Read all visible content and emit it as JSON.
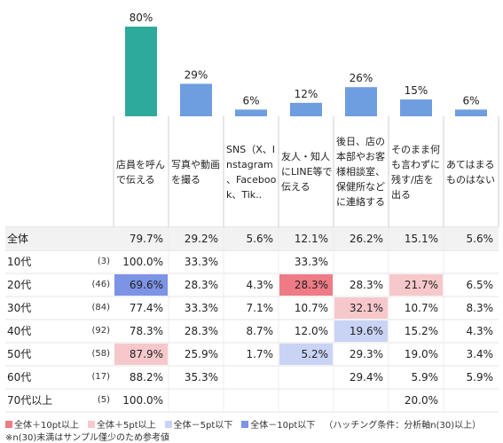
{
  "chart_data": {
    "type": "bar",
    "categories": [
      "店員を呼んで伝える",
      "写真や動画を撮る",
      "SNS（X、Instagram、Facebook、Tik..",
      "友人・知人にLINE等で伝える",
      "後日、店の本部やお客様相談室、保健所などに連絡する",
      "そのまま何も言わずに残す/店を出る",
      "あてはまるものはない"
    ],
    "category_lines": [
      [
        "店員を呼ん",
        "で伝える"
      ],
      [
        "写真や動画",
        "を撮る"
      ],
      [
        "SNS（X、I",
        "nstagram",
        "、Faceboo",
        "k、Tik.."
      ],
      [
        "友人・知人",
        "にLINE等で",
        "伝える"
      ],
      [
        "後日、店の",
        "本部やお客",
        "様相談室、",
        "保健所など",
        "に連絡する"
      ],
      [
        "そのまま何",
        "も言わずに",
        "残す/店を",
        "出る"
      ],
      [
        "あてはまる",
        "ものはない"
      ]
    ],
    "values": [
      80,
      29,
      6,
      12,
      26,
      15,
      6
    ],
    "value_labels": [
      "80%",
      "29%",
      "6%",
      "12%",
      "26%",
      "15%",
      "6%"
    ],
    "bar_colors": [
      "#2eaa9b",
      "#6e9de0",
      "#6e9de0",
      "#6e9de0",
      "#6e9de0",
      "#6e9de0",
      "#6e9de0"
    ],
    "ylim": [
      0,
      80
    ],
    "table": {
      "total": {
        "label": "全体",
        "values": [
          "79.7%",
          "29.2%",
          "5.6%",
          "12.1%",
          "26.2%",
          "15.1%",
          "5.6%"
        ]
      },
      "rows": [
        {
          "label": "10代",
          "n": "(3)",
          "values": [
            "100.0%",
            "33.3%",
            "",
            "33.3%",
            "",
            "",
            ""
          ],
          "hl": [
            "",
            "",
            "",
            "",
            "",
            "",
            ""
          ]
        },
        {
          "label": "20代",
          "n": "(46)",
          "values": [
            "69.6%",
            "28.3%",
            "4.3%",
            "28.3%",
            "28.3%",
            "21.7%",
            "6.5%"
          ],
          "hl": [
            "bm10",
            "",
            "",
            "p10",
            "",
            "p5",
            ""
          ]
        },
        {
          "label": "30代",
          "n": "(84)",
          "values": [
            "77.4%",
            "33.3%",
            "7.1%",
            "10.7%",
            "32.1%",
            "10.7%",
            "8.3%"
          ],
          "hl": [
            "",
            "",
            "",
            "",
            "p5",
            "",
            ""
          ]
        },
        {
          "label": "40代",
          "n": "(92)",
          "values": [
            "78.3%",
            "28.3%",
            "8.7%",
            "12.0%",
            "19.6%",
            "15.2%",
            "4.3%"
          ],
          "hl": [
            "",
            "",
            "",
            "",
            "bm5",
            "",
            ""
          ]
        },
        {
          "label": "50代",
          "n": "(58)",
          "values": [
            "87.9%",
            "25.9%",
            "1.7%",
            "5.2%",
            "29.3%",
            "19.0%",
            "3.4%"
          ],
          "hl": [
            "p5",
            "",
            "",
            "bm5",
            "",
            "",
            ""
          ]
        },
        {
          "label": "60代",
          "n": "(17)",
          "values": [
            "88.2%",
            "35.3%",
            "",
            "",
            "29.4%",
            "5.9%",
            "5.9%"
          ],
          "hl": [
            "",
            "",
            "",
            "",
            "",
            "",
            ""
          ]
        },
        {
          "label": "70代以上",
          "n": "(5)",
          "values": [
            "100.0%",
            "",
            "",
            "",
            "",
            "20.0%",
            ""
          ],
          "hl": [
            "",
            "",
            "",
            "",
            "",
            "",
            ""
          ]
        }
      ]
    },
    "highlight_colors": {
      "p10": "#ee7b85",
      "p5": "#f7c8cb",
      "bm5": "#c9d3f5",
      "bm10": "#7c93e6"
    }
  },
  "legend": {
    "items": [
      {
        "color": "#ee7b85",
        "label": "全体＋10pt以上"
      },
      {
        "color": "#f7c8cb",
        "label": "全体＋5pt以上"
      },
      {
        "color": "#c9d3f5",
        "label": "全体－5pt以下"
      },
      {
        "color": "#7c93e6",
        "label": "全体－10pt以下"
      }
    ],
    "condition": "（ハッチング条件：分析軸n(30)以上）",
    "note": "※n(30)未満はサンプル僅少のため参考値"
  }
}
